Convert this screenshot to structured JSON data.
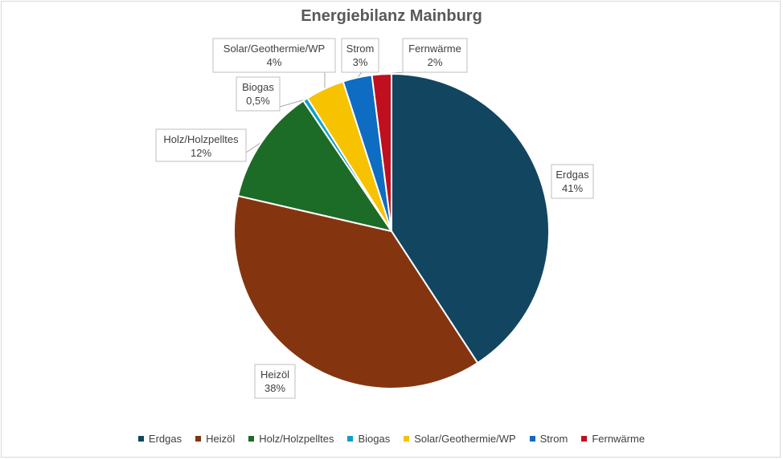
{
  "chart_data": {
    "type": "pie",
    "title": "Energiebilanz Mainburg",
    "legend_position": "bottom",
    "slices": [
      {
        "name": "Erdgas",
        "value": 41,
        "label": "41%",
        "color": "#124560"
      },
      {
        "name": "Heizöl",
        "value": 38,
        "label": "38%",
        "color": "#843510"
      },
      {
        "name": "Holz/Holzpelltes",
        "value": 12,
        "label": "12%",
        "color": "#1c6b27"
      },
      {
        "name": "Biogas",
        "value": 0.5,
        "label": "0,5%",
        "color": "#0fa0c8"
      },
      {
        "name": "Solar/Geothermie/WP",
        "value": 4,
        "label": "4%",
        "color": "#f7c200"
      },
      {
        "name": "Strom",
        "value": 3,
        "label": "3%",
        "color": "#0e6cc2"
      },
      {
        "name": "Fernwärme",
        "value": 2,
        "label": "2%",
        "color": "#c00f1f"
      }
    ]
  }
}
